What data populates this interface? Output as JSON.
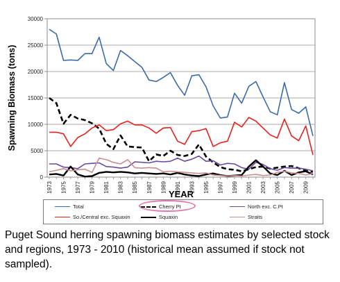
{
  "chart_data": {
    "type": "line",
    "ylabel": "Spawning Biomass (tons)",
    "xlabel": "YEAR",
    "ylim": [
      0,
      30000
    ],
    "yticks": [
      "0",
      "5000",
      "10000",
      "15000",
      "20000",
      "25000",
      "30000"
    ],
    "xlim": [
      1973,
      2010
    ],
    "xtick_labels": [
      "1973",
      "1975",
      "1977",
      "1979",
      "1981",
      "1983",
      "1985",
      "1987",
      "1989",
      "1991",
      "1993",
      "1995",
      "1997",
      "1999",
      "2001",
      "2003",
      "2005",
      "2007",
      "2009"
    ],
    "grid": true,
    "legend_position": "bottom",
    "x": [
      1973,
      1974,
      1975,
      1976,
      1977,
      1978,
      1979,
      1980,
      1981,
      1982,
      1983,
      1984,
      1985,
      1986,
      1987,
      1988,
      1989,
      1990,
      1991,
      1992,
      1993,
      1994,
      1995,
      1996,
      1997,
      1998,
      1999,
      2000,
      2001,
      2002,
      2003,
      2004,
      2005,
      2006,
      2007,
      2008,
      2009,
      2010
    ],
    "series": [
      {
        "name": "Total",
        "color": "#3b6aa8",
        "dash": "solid",
        "values": [
          28000,
          27100,
          22100,
          22200,
          22100,
          23400,
          23400,
          26500,
          21500,
          20200,
          24000,
          23000,
          21900,
          20800,
          18400,
          18100,
          18900,
          19800,
          17400,
          15500,
          19200,
          19400,
          17100,
          13500,
          11200,
          11400,
          15900,
          14000,
          17200,
          18100,
          15200,
          12400,
          11800,
          17900,
          12800,
          12100,
          13300,
          7800
        ]
      },
      {
        "name": "Cherry Pt",
        "color": "#000000",
        "dash": "dashed",
        "values": [
          15000,
          14000,
          10100,
          11800,
          11100,
          10800,
          10200,
          9200,
          6300,
          5300,
          7900,
          5800,
          5700,
          5600,
          3000,
          4300,
          4000,
          5000,
          4200,
          4000,
          4400,
          6200,
          3900,
          2800,
          1900,
          1500,
          1400,
          1100,
          1500,
          1900,
          2000,
          1600,
          1800,
          2000,
          2100,
          1700,
          1200,
          1000
        ]
      },
      {
        "name": "North exc. C.Pt",
        "color": "#6a4a9e",
        "dash": "solid",
        "values": [
          2500,
          2500,
          1900,
          1800,
          1600,
          2500,
          2600,
          2700,
          2000,
          1900,
          1700,
          1900,
          2900,
          2800,
          2700,
          3000,
          2900,
          3000,
          3600,
          3000,
          3400,
          4000,
          3000,
          3100,
          2300,
          2600,
          2500,
          1800,
          1500,
          2800,
          2400,
          1600,
          1300,
          1800,
          1700,
          1700,
          1500,
          1200
        ]
      },
      {
        "name": "So./Central exc. Squaxin",
        "color": "#e8201e",
        "dash": "solid",
        "values": [
          8500,
          8500,
          8200,
          5800,
          7500,
          8200,
          9300,
          9900,
          8800,
          9000,
          10100,
          10600,
          9900,
          9900,
          9300,
          8300,
          9300,
          9400,
          6800,
          6200,
          8600,
          8800,
          9200,
          5800,
          6500,
          6800,
          10400,
          9500,
          11300,
          10600,
          9300,
          8000,
          7400,
          11000,
          7800,
          6900,
          9700,
          4200
        ]
      },
      {
        "name": "Squaxin",
        "color": "#000000",
        "dash": "solid",
        "values": [
          500,
          600,
          300,
          2000,
          500,
          100,
          200,
          800,
          1000,
          900,
          1000,
          900,
          700,
          800,
          700,
          600,
          700,
          500,
          800,
          500,
          300,
          200,
          500,
          700,
          400,
          200,
          300,
          400,
          2000,
          3200,
          2000,
          700,
          400,
          1200,
          400,
          900,
          1100,
          500
        ]
      },
      {
        "name": "Straits",
        "color": "#c98f8f",
        "dash": "solid",
        "values": [
          1000,
          1300,
          1600,
          1200,
          1400,
          1500,
          900,
          3600,
          3300,
          2800,
          2500,
          3300,
          1800,
          1700,
          1800,
          1700,
          1000,
          1100,
          1000,
          900,
          800,
          700,
          800,
          400,
          300,
          200,
          300,
          200,
          400,
          500,
          300,
          400,
          900,
          1100,
          800,
          700,
          400,
          700
        ]
      }
    ]
  },
  "caption": "Puget Sound herring spawning biomass estimates by selected stock and regions, 1973 - 2010 (historical mean assumed if stock not sampled)."
}
